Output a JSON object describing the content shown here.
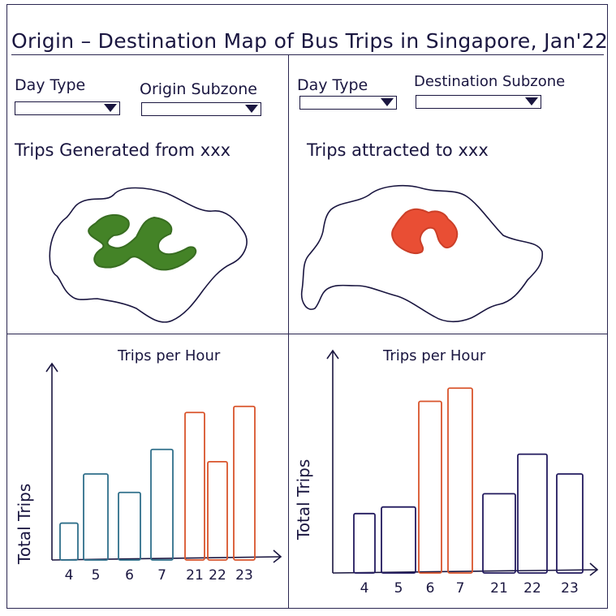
{
  "header": {
    "title": "Origin – Destination Map of Bus Trips in Singapore, Jan'22"
  },
  "left_panel": {
    "filter1_label": "Day Type",
    "filter2_label": "Origin Subzone",
    "map_title": "Trips Generated from xxx",
    "map_color": "#3a7d1c"
  },
  "right_panel": {
    "filter1_label": "Day Type",
    "filter2_label": "Destination Subzone",
    "map_title": "Trips attracted to xxx",
    "map_color": "#e8452a"
  },
  "chart_data": [
    {
      "type": "bar",
      "title": "Trips per Hour",
      "ylabel": "Total Trips",
      "xlabel": "",
      "categories": [
        "4",
        "5",
        "6",
        "7",
        "21",
        "22",
        "23"
      ],
      "values": [
        3,
        7,
        5.5,
        9,
        12,
        8,
        12.5
      ],
      "colors": [
        "#2f6f8a",
        "#2f6f8a",
        "#2f6f8a",
        "#2f6f8a",
        "#d9542b",
        "#d9542b",
        "#d9542b"
      ],
      "ylim": [
        0,
        14
      ]
    },
    {
      "type": "bar",
      "title": "Trips per Hour",
      "ylabel": "Total Trips",
      "xlabel": "",
      "categories": [
        "4",
        "5",
        "6",
        "21",
        "22",
        "23"
      ],
      "values": [
        4.5,
        5,
        13,
        6,
        9,
        7.5
      ],
      "colors": [
        "#221a5e",
        "#221a5e",
        "#d9542b",
        "#221a5e",
        "#221a5e",
        "#221a5e"
      ],
      "extra_bar": {
        "category": "7",
        "value": 14,
        "color": "#d9542b"
      },
      "ylim": [
        0,
        15
      ]
    }
  ]
}
